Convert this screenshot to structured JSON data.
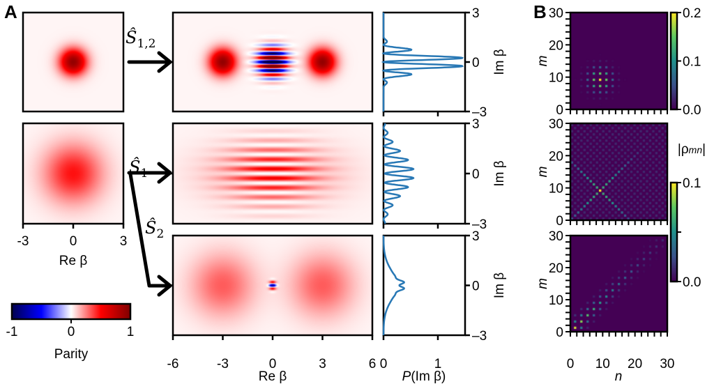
{
  "panels": {
    "a_label": "A",
    "b_label": "B"
  },
  "operators": [
    {
      "hat": "Ŝ",
      "sub": "1,2"
    },
    {
      "hat": "Ŝ",
      "sub": "1"
    },
    {
      "hat": "Ŝ",
      "sub": "2"
    }
  ],
  "parity_colorbar": {
    "label": "Parity",
    "ticks": [
      "-1",
      "0",
      "1"
    ],
    "colors": [
      "#00004d",
      "#0000ff",
      "#ffffff",
      "#ff0000",
      "#800000"
    ]
  },
  "rho_colorbar": {
    "label_prefix": "|ρ",
    "label_sub": "mn",
    "label_suffix": "|",
    "top_ticks": [
      "0.2",
      "0.1",
      "0.0"
    ],
    "bottom_ticks": [
      "0.1",
      "",
      "0.0"
    ],
    "colors": [
      "#440154",
      "#3b528b",
      "#21918c",
      "#5ec962",
      "#fde725"
    ]
  },
  "chart_data": [
    {
      "type": "heatmap",
      "name_key": "wigner-initial",
      "xlabel": "Re β",
      "xlim": [
        -3,
        3
      ],
      "ylim": [
        -3,
        3
      ],
      "xticks": [
        "-3",
        "0",
        "3"
      ],
      "colormap": "seismic",
      "clim": [
        -1,
        1
      ]
    },
    {
      "type": "heatmap",
      "name_key": "wigner-output",
      "xlabel": "Re β",
      "ylabel": "Im β",
      "xlim": [
        -6,
        6
      ],
      "ylim": [
        -3,
        3
      ],
      "xticks": [
        "-6",
        "-3",
        "0",
        "3",
        "6"
      ],
      "yticks": [
        "3",
        "0",
        "-3"
      ],
      "colormap": "seismic",
      "clim": [
        -1,
        1
      ]
    },
    {
      "type": "line",
      "xlabel_italic": "P",
      "xlabel_rest": "(Im β)",
      "ylabel": "Im β",
      "xlim": [
        0,
        1.5
      ],
      "ylim": [
        -3,
        3
      ],
      "xticks": [
        "0",
        "1"
      ],
      "color": "#2878b5",
      "series_peaks": [
        {
          "max": 1.45,
          "peaks_at": [
            -1.6,
            -1.0,
            -0.25,
            0.25,
            1.0,
            1.6
          ]
        },
        {
          "max": 0.55,
          "peaks_at": [
            -2.6,
            -2.1,
            -1.6,
            -1.05,
            -0.55,
            0,
            0.55,
            1.05,
            1.6,
            2.1,
            2.6
          ]
        },
        {
          "max": 0.38,
          "peaks_at": [
            -0.2,
            0.2
          ]
        }
      ]
    },
    {
      "type": "heatmap",
      "xlabel": "n",
      "ylabel": "m",
      "xlim": [
        0,
        30
      ],
      "ylim": [
        0,
        30
      ],
      "xticks": [
        "0",
        "10",
        "20",
        "30"
      ],
      "yticks": [
        "30",
        "20",
        "10",
        "0"
      ],
      "colormap": "viridis",
      "clims": [
        [
          0,
          0.2
        ],
        [
          0,
          0.1
        ],
        [
          0,
          0.1
        ]
      ],
      "patterns": [
        "block centered near n=m=9",
        "X (diagonal and anti-diagonal)",
        "diagonal band"
      ]
    }
  ]
}
